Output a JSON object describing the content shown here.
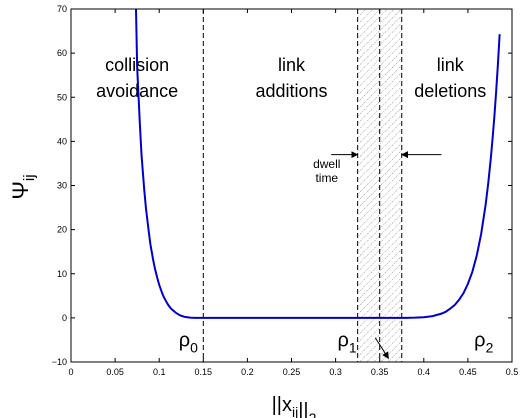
{
  "chart_data": {
    "type": "line",
    "xlabel": "||x_ij||_2",
    "ylabel": "Ψ_ij",
    "xlim": [
      0,
      0.5
    ],
    "ylim": [
      -10,
      70
    ],
    "x_ticks": [
      0,
      0.05,
      0.1,
      0.15,
      0.2,
      0.25,
      0.3,
      0.35,
      0.4,
      0.45,
      0.5
    ],
    "x_tick_labels": [
      "0",
      "0.05",
      "0.1",
      "0.15",
      "0.2",
      "0.25",
      "0.3",
      "0.35",
      "0.4",
      "0.45",
      "0.5"
    ],
    "y_ticks": [
      -10,
      0,
      10,
      20,
      30,
      40,
      50,
      60,
      70
    ],
    "y_tick_labels": [
      "−10",
      "0",
      "10",
      "20",
      "30",
      "40",
      "50",
      "60",
      "70"
    ],
    "grid": false,
    "series": [
      {
        "color": "#0000cc",
        "x": [
          0.0737,
          0.075,
          0.078,
          0.08,
          0.083,
          0.085,
          0.088,
          0.09,
          0.093,
          0.095,
          0.098,
          0.1,
          0.103,
          0.105,
          0.108,
          0.11,
          0.113,
          0.115,
          0.118,
          0.12,
          0.123,
          0.125,
          0.128,
          0.13,
          0.135,
          0.14,
          0.15,
          0.2,
          0.25,
          0.3,
          0.35,
          0.37,
          0.38,
          0.39,
          0.4,
          0.41,
          0.42,
          0.425,
          0.43,
          0.435,
          0.44,
          0.445,
          0.45,
          0.455,
          0.46,
          0.465,
          0.47,
          0.473,
          0.476,
          0.478,
          0.48,
          0.482,
          0.484,
          0.486
        ],
        "y": [
          70,
          56.9,
          44.2,
          36.8,
          29.1,
          24.8,
          19.8,
          16.7,
          13.3,
          11.3,
          8.9,
          7.5,
          5.8,
          4.8,
          3.7,
          3.0,
          2.2,
          1.8,
          1.3,
          1.0,
          0.65,
          0.47,
          0.28,
          0.19,
          0.06,
          0.01,
          0,
          0,
          0,
          0,
          0,
          0,
          0.01,
          0.05,
          0.15,
          0.4,
          0.96,
          1.4,
          2.1,
          2.9,
          4.1,
          5.6,
          7.7,
          10.4,
          14.1,
          19.0,
          25.5,
          30.4,
          36.2,
          40.7,
          45.6,
          51.2,
          57.4,
          64.3
        ]
      }
    ],
    "dashed_lines_x": [
      0.15,
      0.325,
      0.35,
      0.375
    ],
    "shaded_band_x": [
      0.325,
      0.375
    ],
    "region_labels": [
      {
        "lines": [
          "collision",
          "avoidance"
        ],
        "x": 0.075,
        "y": 56
      },
      {
        "lines": [
          "link",
          "additions"
        ],
        "x": 0.25,
        "y": 56
      },
      {
        "lines": [
          "link",
          "deletions"
        ],
        "x": 0.43,
        "y": 56
      }
    ],
    "rho_labels": [
      {
        "base": "ρ",
        "sub": "0",
        "x": 0.133,
        "y": -6.5
      },
      {
        "base": "ρ",
        "sub": "1",
        "x": 0.313,
        "y": -6.5
      },
      {
        "base": "ρ",
        "sub": "2",
        "x": 0.468,
        "y": -6.5
      }
    ],
    "dwell_annotation": {
      "lines": [
        "dwell",
        "time"
      ],
      "x": 0.29,
      "y": 34,
      "arrow_y": 37,
      "left_arrow_from_x": 0.295,
      "left_arrow_to_x": 0.325,
      "right_arrow_from_x": 0.42,
      "right_arrow_to_x": 0.375
    },
    "pointer_arrow": {
      "from": [
        0.345,
        -4.5
      ],
      "to": [
        0.36,
        -9.2
      ]
    }
  }
}
